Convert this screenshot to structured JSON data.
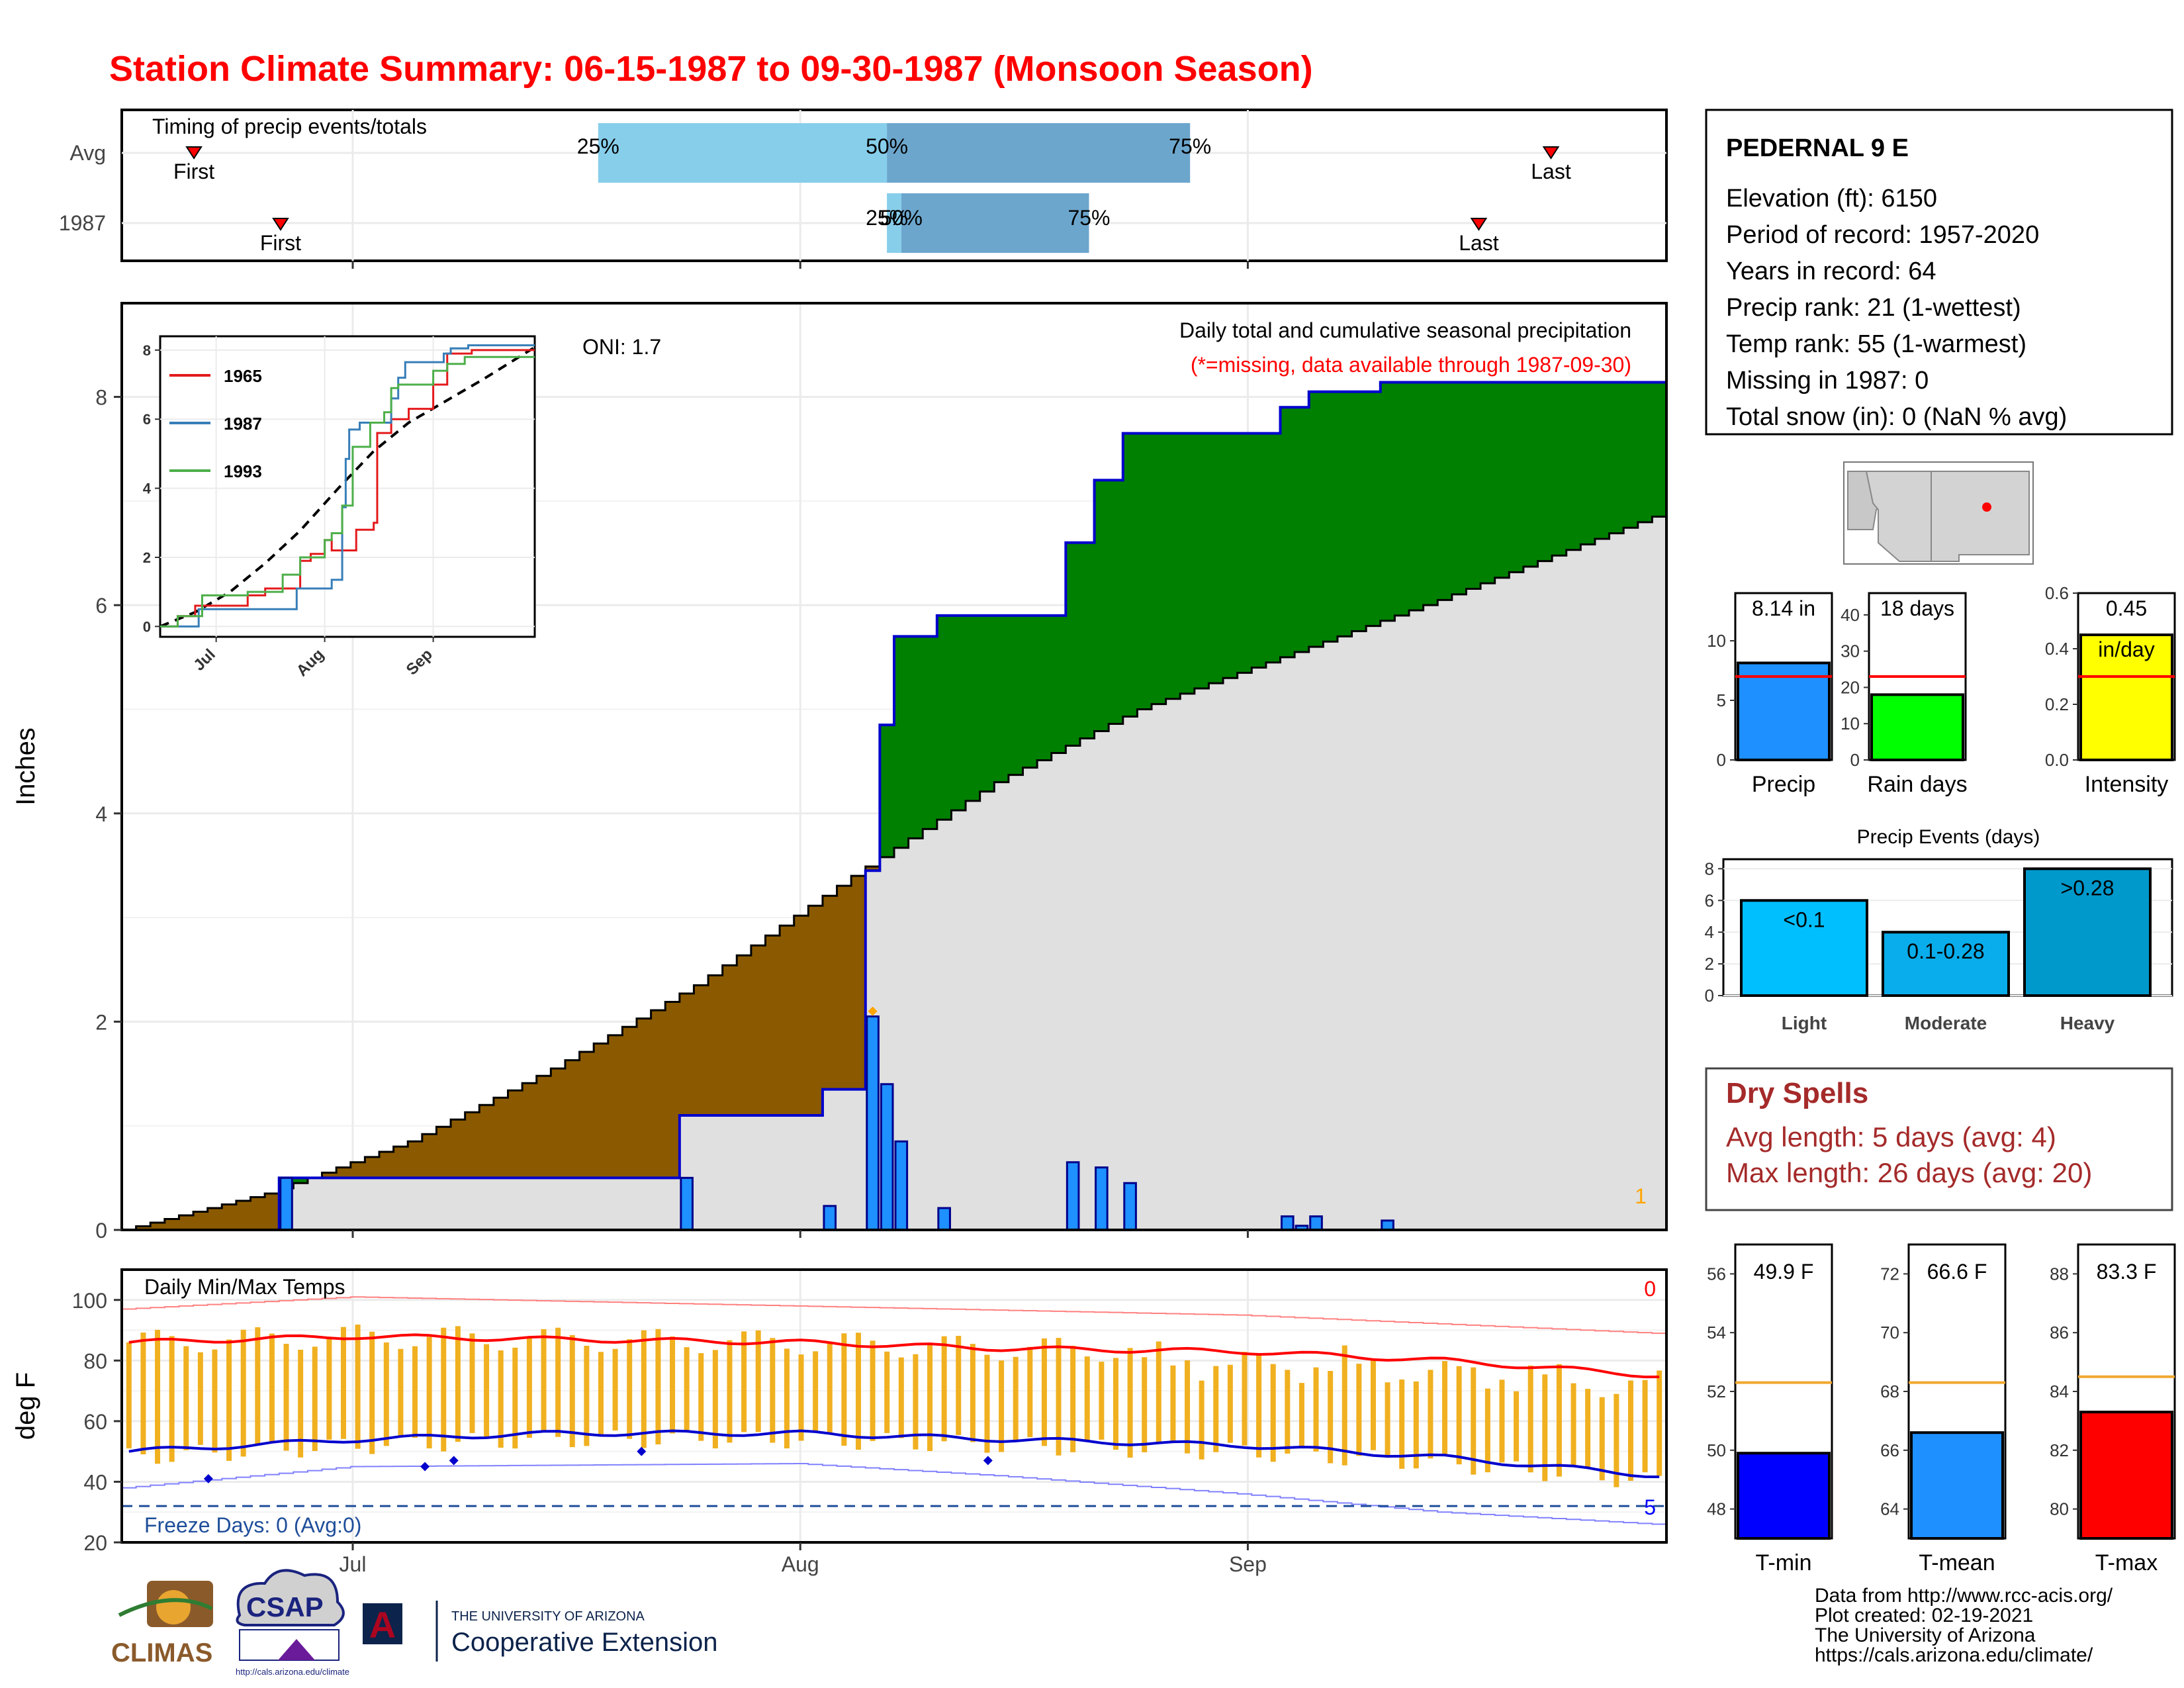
{
  "title": "Station Climate Summary: 06-15-1987 to 09-30-1987 (Monsoon Season)",
  "timing": {
    "label": "Timing of precip events/totals",
    "rows": [
      "Avg",
      "1987"
    ],
    "first_label": "First",
    "last_label": "Last",
    "avg": {
      "first": "1987-06-20",
      "q25": "1987-07-18",
      "q50": "1987-08-07",
      "q75": "1987-08-28",
      "last": "1987-09-22"
    },
    "y1987": {
      "first": "1987-06-26",
      "q25": "1987-08-07",
      "q50": "1987-08-08",
      "q75": "1987-08-21",
      "last": "1987-09-17"
    },
    "q_labels": [
      "25%",
      "50%",
      "75%"
    ]
  },
  "station": {
    "name": "PEDERNAL 9 E",
    "lines": [
      "Elevation (ft): 6150",
      "Period of record: 1957-2020",
      "Years in record: 64",
      "Precip rank: 21 (1-wettest)",
      "Temp rank: 55 (1-warmest)",
      "Missing in 1987: 0",
      "Total snow (in): 0 (NaN % avg)"
    ]
  },
  "precip_plot": {
    "header": "Daily total and cumulative seasonal precipitation",
    "note": "(*=missing, data available through 1987-09-30)",
    "oni": "ONI: 1.7",
    "ylabel": "Inches",
    "yticks": [
      "0",
      "2",
      "4",
      "6",
      "8"
    ],
    "xticks": [
      "Jul",
      "Aug",
      "Sep"
    ],
    "corner_label": "1",
    "colors": {
      "surplus": "#008000",
      "deficit": "#8B5A00",
      "bars": "#1E90FF",
      "cum": "#0000CD",
      "avg_fill": "#E0E0E0"
    }
  },
  "inset": {
    "yticks": [
      "0",
      "2",
      "4",
      "6",
      "8"
    ],
    "xticks": [
      "Jul",
      "Aug",
      "Sep"
    ],
    "legend": [
      {
        "name": "1965",
        "color": "#E41A1C"
      },
      {
        "name": "1987",
        "color": "#377EB8"
      },
      {
        "name": "1993",
        "color": "#4DAF4A"
      }
    ]
  },
  "temp_plot": {
    "label": "Daily Min/Max Temps",
    "ylabel": "deg F",
    "yticks": [
      "20",
      "40",
      "60",
      "80",
      "100"
    ],
    "xticks": [
      "Jul",
      "Aug",
      "Sep"
    ],
    "freeze": "Freeze Days: 0 (Avg:0)",
    "top_count": "0",
    "bottom_count": "5"
  },
  "mini_precip": [
    {
      "key": "precip",
      "value_label": "8.14 in",
      "unit_label": "",
      "xlabel": "Precip",
      "yticks": [
        "0",
        "5",
        "10"
      ],
      "ymax": 14,
      "value": 8.14,
      "avg": 7.0,
      "color": "#1E90FF"
    },
    {
      "key": "rain_days",
      "value_label": "18 days",
      "unit_label": "",
      "xlabel": "Rain days",
      "yticks": [
        "0",
        "10",
        "20",
        "30",
        "40"
      ],
      "ymax": 46,
      "value": 18,
      "avg": 23,
      "color": "#00FF00"
    },
    {
      "key": "intensity",
      "value_label": "0.45",
      "unit_label": "in/day",
      "xlabel": "Intensity",
      "yticks": [
        "0.0",
        "0.2",
        "0.4",
        "0.6"
      ],
      "ymax": 0.6,
      "value": 0.45,
      "avg": 0.3,
      "color": "#FFFF00"
    }
  ],
  "events": {
    "title": "Precip Events (days)",
    "yticks": [
      "0",
      "2",
      "4",
      "6",
      "8"
    ],
    "bars": [
      {
        "category": "Light",
        "label": "<0.1",
        "value": 6,
        "color": "#00BFFF"
      },
      {
        "category": "Moderate",
        "label": "0.1-0.28",
        "value": 4,
        "color": "#0AADEB"
      },
      {
        "category": "Heavy",
        "label": ">0.28",
        "value": 8,
        "color": "#0099CC"
      }
    ]
  },
  "dry_spells": {
    "title": "Dry Spells",
    "avg_line": "Avg length: 5 days (avg: 4)",
    "max_line": "Max length: 26 days (avg: 20)"
  },
  "mini_temp": [
    {
      "key": "tmin",
      "value_label": "49.9 F",
      "xlabel": "T-min",
      "ticks": [
        "48",
        "50",
        "52",
        "54",
        "56"
      ],
      "ymin": 47,
      "ymax": 57,
      "value": 49.9,
      "avg": 52.3,
      "color": "#0000FF"
    },
    {
      "key": "tmean",
      "value_label": "66.6 F",
      "xlabel": "T-mean",
      "ticks": [
        "64",
        "66",
        "68",
        "70",
        "72"
      ],
      "ymin": 63,
      "ymax": 73,
      "value": 66.6,
      "avg": 68.3,
      "color": "#1E90FF"
    },
    {
      "key": "tmax",
      "value_label": "83.3 F",
      "xlabel": "T-max",
      "ticks": [
        "80",
        "82",
        "84",
        "86",
        "88"
      ],
      "ymin": 79,
      "ymax": 89,
      "value": 83.3,
      "avg": 84.5,
      "color": "#FF0000"
    }
  ],
  "footer": {
    "lines": [
      "Data from http://www.rcc-acis.org/",
      "Plot created: 02-19-2021",
      "The University of Arizona",
      "https://cals.arizona.edu/climate/"
    ],
    "logos": {
      "climas": "CLIMAS",
      "csap": "CSAP",
      "csap_url": "http://cals.arizona.edu/climate",
      "ua_small": "THE UNIVERSITY OF ARIZONA",
      "ua_big": "Cooperative Extension",
      "ua_letter": "A"
    }
  },
  "chart_data": [
    {
      "type": "area",
      "title": "Daily total and cumulative seasonal precipitation",
      "ylabel": "Inches",
      "ylim": [
        0,
        8.9
      ],
      "x_range": [
        "1987-06-15",
        "1987-09-30"
      ],
      "daily_precip": [
        {
          "x": "1987-06-26",
          "y": 0.5
        },
        {
          "x": "1987-07-24",
          "y": 0.5
        },
        {
          "x": "1987-08-03",
          "y": 0.23
        },
        {
          "x": "1987-08-06",
          "y": 2.05
        },
        {
          "x": "1987-08-07",
          "y": 1.4
        },
        {
          "x": "1987-08-08",
          "y": 0.85
        },
        {
          "x": "1987-08-11",
          "y": 0.21
        },
        {
          "x": "1987-08-20",
          "y": 0.65
        },
        {
          "x": "1987-08-22",
          "y": 0.6
        },
        {
          "x": "1987-08-24",
          "y": 0.45
        },
        {
          "x": "1987-09-04",
          "y": 0.13
        },
        {
          "x": "1987-09-05",
          "y": 0.04
        },
        {
          "x": "1987-09-06",
          "y": 0.13
        },
        {
          "x": "1987-09-11",
          "y": 0.09
        }
      ],
      "cumulative_1987": [
        [
          "1987-06-15",
          0
        ],
        [
          "1987-06-26",
          0.5
        ],
        [
          "1987-07-24",
          1.1
        ],
        [
          "1987-08-03",
          1.35
        ],
        [
          "1987-08-06",
          3.45
        ],
        [
          "1987-08-07",
          4.85
        ],
        [
          "1987-08-08",
          5.7
        ],
        [
          "1987-08-11",
          5.9
        ],
        [
          "1987-08-20",
          6.6
        ],
        [
          "1987-08-22",
          7.2
        ],
        [
          "1987-08-24",
          7.65
        ],
        [
          "1987-09-04",
          7.9
        ],
        [
          "1987-09-06",
          8.05
        ],
        [
          "1987-09-11",
          8.14
        ],
        [
          "1987-09-30",
          8.14
        ]
      ],
      "cumulative_avg": [
        [
          "1987-06-15",
          0
        ],
        [
          "1987-06-25",
          0.35
        ],
        [
          "1987-07-05",
          0.85
        ],
        [
          "1987-07-15",
          1.55
        ],
        [
          "1987-07-25",
          2.35
        ],
        [
          "1987-08-05",
          3.4
        ],
        [
          "1987-08-15",
          4.3
        ],
        [
          "1987-08-25",
          5.0
        ],
        [
          "1987-09-05",
          5.55
        ],
        [
          "1987-09-15",
          6.05
        ],
        [
          "1987-09-30",
          6.85
        ]
      ]
    },
    {
      "type": "line",
      "title": "Daily Min/Max Temps",
      "ylabel": "deg F",
      "ylim": [
        20,
        110
      ],
      "series": [
        {
          "name": "avg_max",
          "points": [
            [
              "1987-06-15",
              86
            ],
            [
              "1987-07-01",
              88
            ],
            [
              "1987-07-15",
              87
            ],
            [
              "1987-08-01",
              86
            ],
            [
              "1987-08-15",
              84
            ],
            [
              "1987-09-01",
              83
            ],
            [
              "1987-09-15",
              80
            ],
            [
              "1987-09-30",
              75
            ]
          ]
        },
        {
          "name": "avg_min",
          "points": [
            [
              "1987-06-15",
              50
            ],
            [
              "1987-07-01",
              54
            ],
            [
              "1987-07-15",
              56
            ],
            [
              "1987-08-01",
              56
            ],
            [
              "1987-08-15",
              54
            ],
            [
              "1987-09-01",
              52
            ],
            [
              "1987-09-15",
              48
            ],
            [
              "1987-09-30",
              42
            ]
          ]
        },
        {
          "name": "record_max",
          "points": [
            [
              "1987-06-15",
              97
            ],
            [
              "1987-07-01",
              101
            ],
            [
              "1987-08-01",
              98
            ],
            [
              "1987-09-01",
              95
            ],
            [
              "1987-09-30",
              89
            ]
          ]
        },
        {
          "name": "record_min",
          "points": [
            [
              "1987-06-15",
              38
            ],
            [
              "1987-07-01",
              45
            ],
            [
              "1987-08-01",
              46
            ],
            [
              "1987-08-15",
              42
            ],
            [
              "1987-09-01",
              36
            ],
            [
              "1987-09-15",
              30
            ],
            [
              "1987-09-30",
              26
            ]
          ]
        }
      ],
      "freeze_line": 32
    },
    {
      "type": "bar",
      "title": "Precip Events (days)",
      "categories": [
        "Light",
        "Moderate",
        "Heavy"
      ],
      "values": [
        6,
        4,
        8
      ],
      "ylim": [
        0,
        8
      ]
    }
  ]
}
